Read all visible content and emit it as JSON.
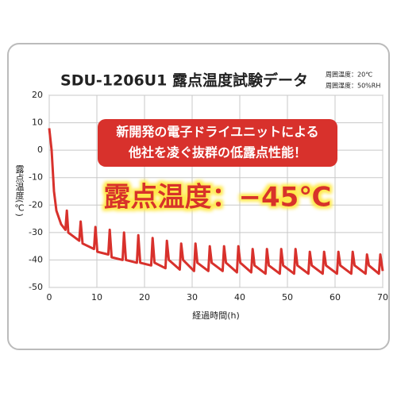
{
  "chart_data": {
    "type": "line",
    "title": "SDU-1206U1 露点温度試験データ",
    "notes": [
      "周囲温度：20℃",
      "周囲湿度：50%RH"
    ],
    "callout_lines": [
      "新開発の電子ドライユニットによる",
      "他社を凌ぐ抜群の低露点性能！"
    ],
    "highlight": "露点温度：−45℃",
    "x_label": "経過時間(h)",
    "y_label": "露点温度(℃)",
    "xlim": [
      0,
      70
    ],
    "ylim": [
      -50,
      20
    ],
    "xticks": [
      0,
      10,
      20,
      30,
      40,
      50,
      60,
      70
    ],
    "yticks": [
      -50,
      -40,
      -30,
      -20,
      -10,
      0,
      10,
      20
    ],
    "grid": true,
    "series": [
      {
        "name": "露点温度",
        "color": "#d8312c",
        "x": [
          0,
          0.5,
          1,
          1.5,
          2.5,
          3.4,
          3.7,
          4,
          6.3,
          6.6,
          7,
          9.4,
          9.7,
          10.1,
          12.4,
          12.7,
          13.1,
          15.4,
          15.7,
          16.1,
          18.4,
          18.7,
          19.1,
          21.4,
          21.7,
          22.1,
          24.4,
          24.7,
          25.1,
          27.4,
          27.7,
          28.1,
          30.4,
          30.7,
          31.1,
          33.4,
          33.7,
          34.1,
          36.4,
          36.7,
          37.1,
          39.4,
          39.7,
          40.1,
          42.4,
          42.7,
          43.1,
          45.4,
          45.7,
          46.1,
          48.4,
          48.7,
          49.1,
          51.4,
          51.7,
          52.1,
          54.4,
          54.7,
          55.1,
          57.4,
          57.7,
          58.1,
          60.4,
          60.7,
          61.1,
          63.4,
          63.7,
          64.1,
          66.4,
          66.7,
          67.1,
          69.2,
          69.5,
          70
        ],
        "values": [
          8,
          0,
          -15,
          -22,
          -27,
          -29,
          -22,
          -30,
          -33,
          -26,
          -34,
          -36,
          -28,
          -37,
          -38,
          -29,
          -39,
          -40,
          -30,
          -40,
          -41,
          -31,
          -41,
          -42,
          -32,
          -41,
          -43,
          -33,
          -40,
          -43.5,
          -34,
          -40,
          -44,
          -34,
          -41,
          -44,
          -35,
          -41,
          -44,
          -35,
          -41,
          -44.5,
          -35,
          -41,
          -44.5,
          -36,
          -42,
          -45,
          -36,
          -42,
          -45,
          -36,
          -42,
          -45,
          -36,
          -42,
          -45,
          -37,
          -42,
          -45,
          -37,
          -42,
          -45,
          -37,
          -42,
          -45,
          -37,
          -42,
          -45,
          -38,
          -42,
          -45,
          -38,
          -44
        ]
      }
    ]
  }
}
